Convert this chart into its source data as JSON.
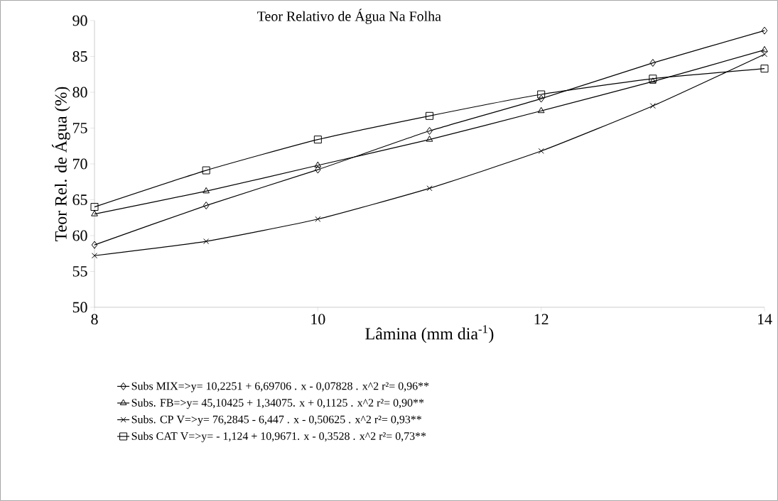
{
  "chart_data": {
    "type": "line",
    "title": "Teor Relativo de Água Na Folha",
    "xlabel": "Lâmina (mm dia$^{-1}$)",
    "ylabel": "Teor Rel. de Água (%)",
    "x": [
      8,
      9,
      10,
      11,
      12,
      13,
      14
    ],
    "series": [
      {
        "name": "Subs MIX=>y= 10,2251 + 6,69706 . x - 0,07828 . x^2     r²= 0,96**",
        "color": "#000000",
        "marker": "diamond",
        "values": [
          58.7,
          64.2,
          69.2,
          74.6,
          79.1,
          84.1,
          88.6
        ]
      },
      {
        "name": "Subs. FB=>y= 45,10425 + 1,34075. x + 0,1125 . x^2     r²= 0,90**",
        "color": "#000000",
        "marker": "triangle",
        "values": [
          63.0,
          66.2,
          69.8,
          73.4,
          77.4,
          81.5,
          85.9
        ]
      },
      {
        "name": "Subs. CP V=>y= 76,2845 - 6,447 . x - 0,50625 . x^2     r²= 0,93**",
        "color": "#000000",
        "marker": "cross",
        "values": [
          57.2,
          59.2,
          62.3,
          66.6,
          71.8,
          78.1,
          85.3
        ]
      },
      {
        "name": "Subs CAT V=>y= - 1,124 + 10,9671. x - 0,3528 . x^2     r²= 0,73**",
        "color": "#000000",
        "marker": "square",
        "values": [
          64.0,
          69.1,
          73.4,
          76.7,
          79.7,
          81.9,
          83.3
        ]
      }
    ],
    "xlim": [
      8,
      14
    ],
    "xticks": [
      8,
      10,
      12,
      14
    ],
    "ylim": [
      50,
      90
    ],
    "yticks": [
      50,
      55,
      60,
      65,
      70,
      75,
      80,
      85,
      90
    ],
    "grid": false,
    "legend": "bottom",
    "line_style": "solid"
  }
}
